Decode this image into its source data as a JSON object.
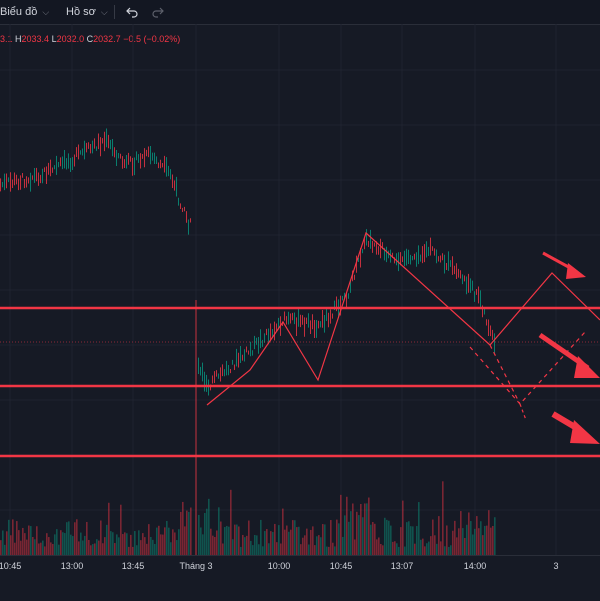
{
  "toolbar": {
    "chart_menu_label": "Biểu đồ",
    "profile_menu_label": "Hồ sơ",
    "undo_icon": "undo-icon",
    "redo_icon": "redo-icon",
    "chevron_icon": "chevron-down-icon"
  },
  "legend": {
    "open_tail": "3.1",
    "high_key": "H",
    "high_value": "2033.4",
    "low_key": "L",
    "low_value": "2032.0",
    "close_key": "C",
    "close_value": "2032.7",
    "change": "−0.5 (−0.02%)"
  },
  "time_axis": [
    "10:45",
    "13:00",
    "13:45",
    "Tháng 3",
    "10:00",
    "10:45",
    "13:07",
    "14:00",
    "3"
  ],
  "colors": {
    "background": "#161a25",
    "up": "#089981",
    "down": "#f23645",
    "drawing": "#f23645",
    "text": "#d1d4dc"
  },
  "drawings": {
    "horizontal_lines": 3,
    "arrows": 3,
    "type": "projected zigzag path"
  },
  "chart_data": {
    "type": "candlestick",
    "title": "",
    "xlabel": "",
    "ylabel": "",
    "x_ticks": [
      "10:45",
      "13:00",
      "13:45",
      "Tháng 3",
      "10:00",
      "10:45",
      "13:07",
      "14:00",
      "3"
    ],
    "last": {
      "high": 2033.4,
      "low": 2032.0,
      "close": 2032.7,
      "change": -0.5,
      "change_pct": -0.02
    },
    "volume": true,
    "grid": true
  }
}
